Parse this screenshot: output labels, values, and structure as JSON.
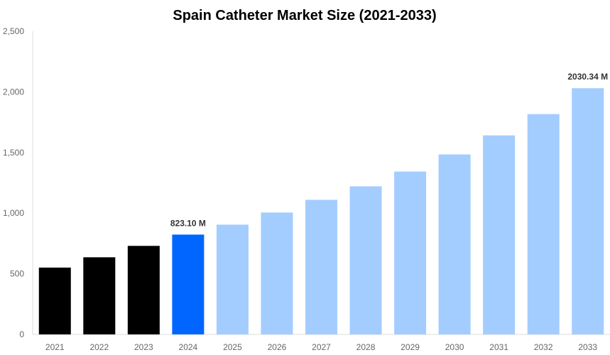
{
  "chart_data": {
    "type": "bar",
    "title": "Spain Catheter Market Size (2021-2033)",
    "xlabel": "",
    "ylabel": "",
    "ylim": [
      0,
      2500
    ],
    "yticks": [
      0,
      500,
      1000,
      1500,
      2000,
      2500
    ],
    "ytick_labels": [
      "0",
      "500",
      "1,000",
      "1,500",
      "2,000",
      "2,500"
    ],
    "grid": false,
    "categories": [
      "2021",
      "2022",
      "2023",
      "2024",
      "2025",
      "2026",
      "2027",
      "2028",
      "2029",
      "2030",
      "2031",
      "2032",
      "2033"
    ],
    "values": [
      551,
      636,
      730,
      823.1,
      905,
      1005,
      1110,
      1221,
      1343,
      1484,
      1641,
      1817,
      2030.34
    ],
    "bar_colors": [
      "#000000",
      "#000000",
      "#000000",
      "#0066ff",
      "#a3cdff",
      "#a3cdff",
      "#a3cdff",
      "#a3cdff",
      "#a3cdff",
      "#a3cdff",
      "#a3cdff",
      "#a3cdff",
      "#a3cdff"
    ],
    "data_labels": {
      "3": "823.10 M",
      "12": "2030.34 M"
    }
  }
}
